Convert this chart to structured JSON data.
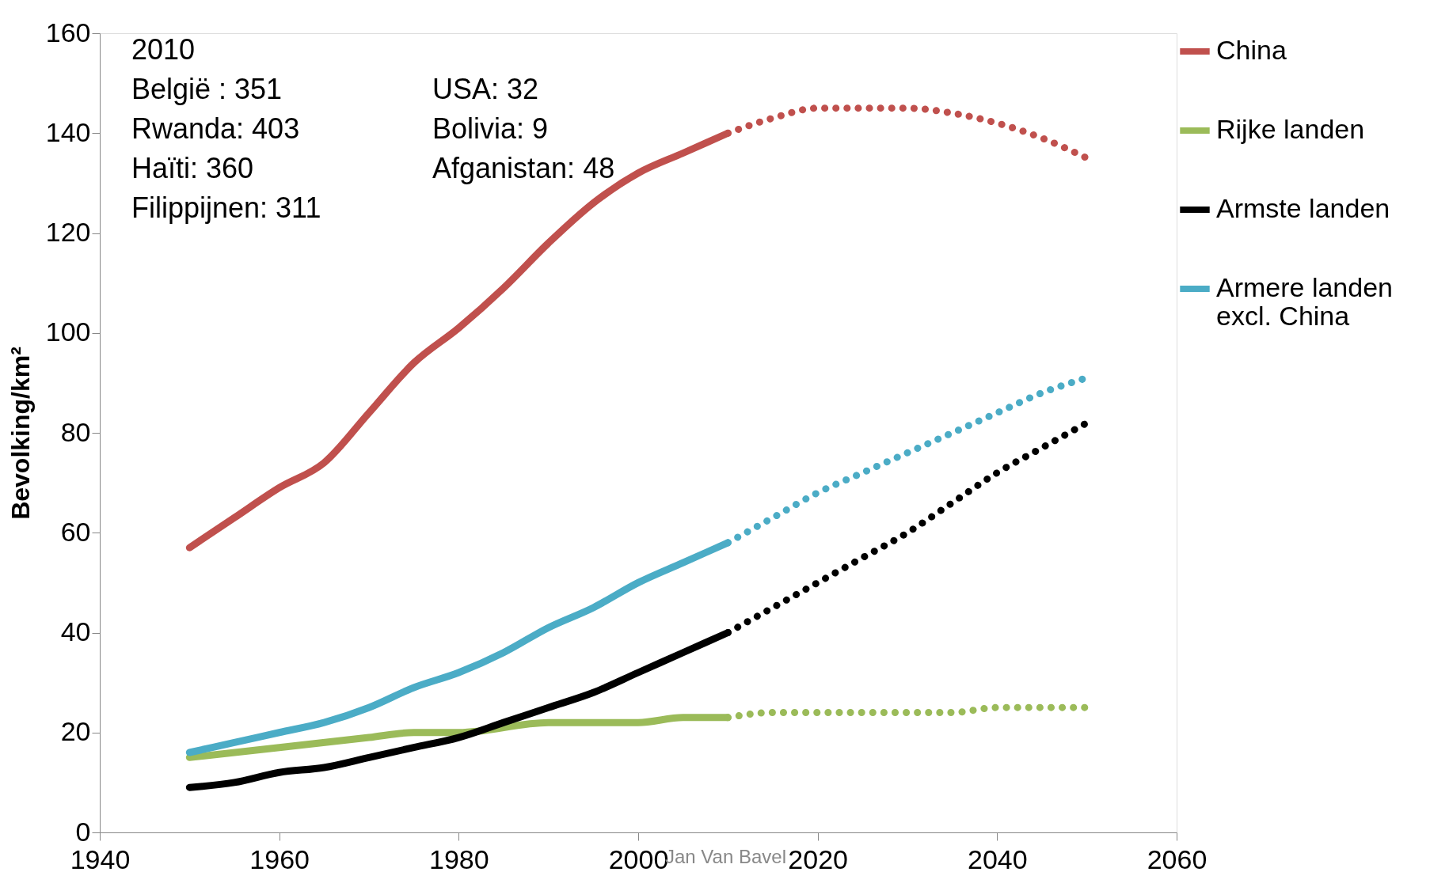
{
  "chart_data": {
    "type": "line",
    "ylabel": "Bevolking/km²",
    "xlim": [
      1940,
      2060
    ],
    "xticks": [
      1940,
      1960,
      1980,
      2000,
      2020,
      2040,
      2060
    ],
    "ylim": [
      0,
      160
    ],
    "yticks": [
      0,
      20,
      40,
      60,
      80,
      100,
      120,
      140,
      160
    ],
    "grid": false,
    "legend": "right",
    "marker": "none",
    "annotations": [
      "2010",
      "België :    351",
      "Rwanda:  403",
      "Haïti:        360",
      "Filippijnen: 311",
      "USA:  32",
      "Bolivia: 9",
      "Afganistan: 48",
      "Jan Van Bavel"
    ],
    "series": [
      {
        "name": "China",
        "color": "#c0504d",
        "line_style": "solid",
        "x": [
          1950,
          1955,
          1960,
          1965,
          1970,
          1975,
          1980,
          1985,
          1990,
          1995,
          2000,
          2005,
          2010
        ],
        "values": [
          57,
          63,
          69,
          74,
          84,
          94,
          101,
          109,
          118,
          126,
          132,
          136,
          140
        ]
      },
      {
        "name": "Rijke landen",
        "color": "#9bbb59",
        "line_style": "solid",
        "x": [
          1950,
          1960,
          1970,
          1975,
          1980,
          1990,
          2000,
          2005,
          2010
        ],
        "values": [
          15,
          17,
          19,
          20,
          20,
          22,
          22,
          23,
          23
        ]
      },
      {
        "name": "Armste landen",
        "color": "#000000",
        "line_style": "solid",
        "x": [
          1950,
          1955,
          1960,
          1965,
          1970,
          1975,
          1980,
          1985,
          1990,
          1995,
          2000,
          2005,
          2010
        ],
        "values": [
          9,
          10,
          12,
          13,
          15,
          17,
          19,
          22,
          25,
          28,
          32,
          36,
          40
        ]
      },
      {
        "name": "Armere landen excl. China",
        "color": "#4bacc6",
        "line_style": "solid",
        "x": [
          1950,
          1955,
          1960,
          1965,
          1970,
          1975,
          1980,
          1985,
          1990,
          1995,
          2000,
          2005,
          2010
        ],
        "values": [
          16,
          18,
          20,
          22,
          25,
          29,
          32,
          36,
          41,
          45,
          50,
          54,
          58
        ]
      },
      {
        "color": "#c0504d",
        "line_style": "dotted",
        "x": [
          2010,
          2015,
          2020,
          2025,
          2030,
          2035,
          2040,
          2045,
          2050
        ],
        "values": [
          140,
          143,
          145,
          145,
          145,
          144,
          142,
          139,
          135
        ]
      },
      {
        "color": "#9bbb59",
        "line_style": "dotted",
        "x": [
          2010,
          2015,
          2020,
          2025,
          2030,
          2035,
          2040,
          2045,
          2050
        ],
        "values": [
          23,
          24,
          24,
          24,
          24,
          24,
          25,
          25,
          25
        ]
      },
      {
        "color": "#000000",
        "line_style": "dotted",
        "x": [
          2010,
          2015,
          2020,
          2025,
          2030,
          2035,
          2040,
          2045,
          2050
        ],
        "values": [
          40,
          45,
          50,
          55,
          60,
          66,
          72,
          77,
          82
        ]
      },
      {
        "color": "#4bacc6",
        "line_style": "dotted",
        "x": [
          2010,
          2015,
          2020,
          2025,
          2030,
          2035,
          2040,
          2045,
          2050
        ],
        "values": [
          58,
          63,
          68,
          72,
          76,
          80,
          84,
          88,
          91
        ]
      }
    ]
  }
}
